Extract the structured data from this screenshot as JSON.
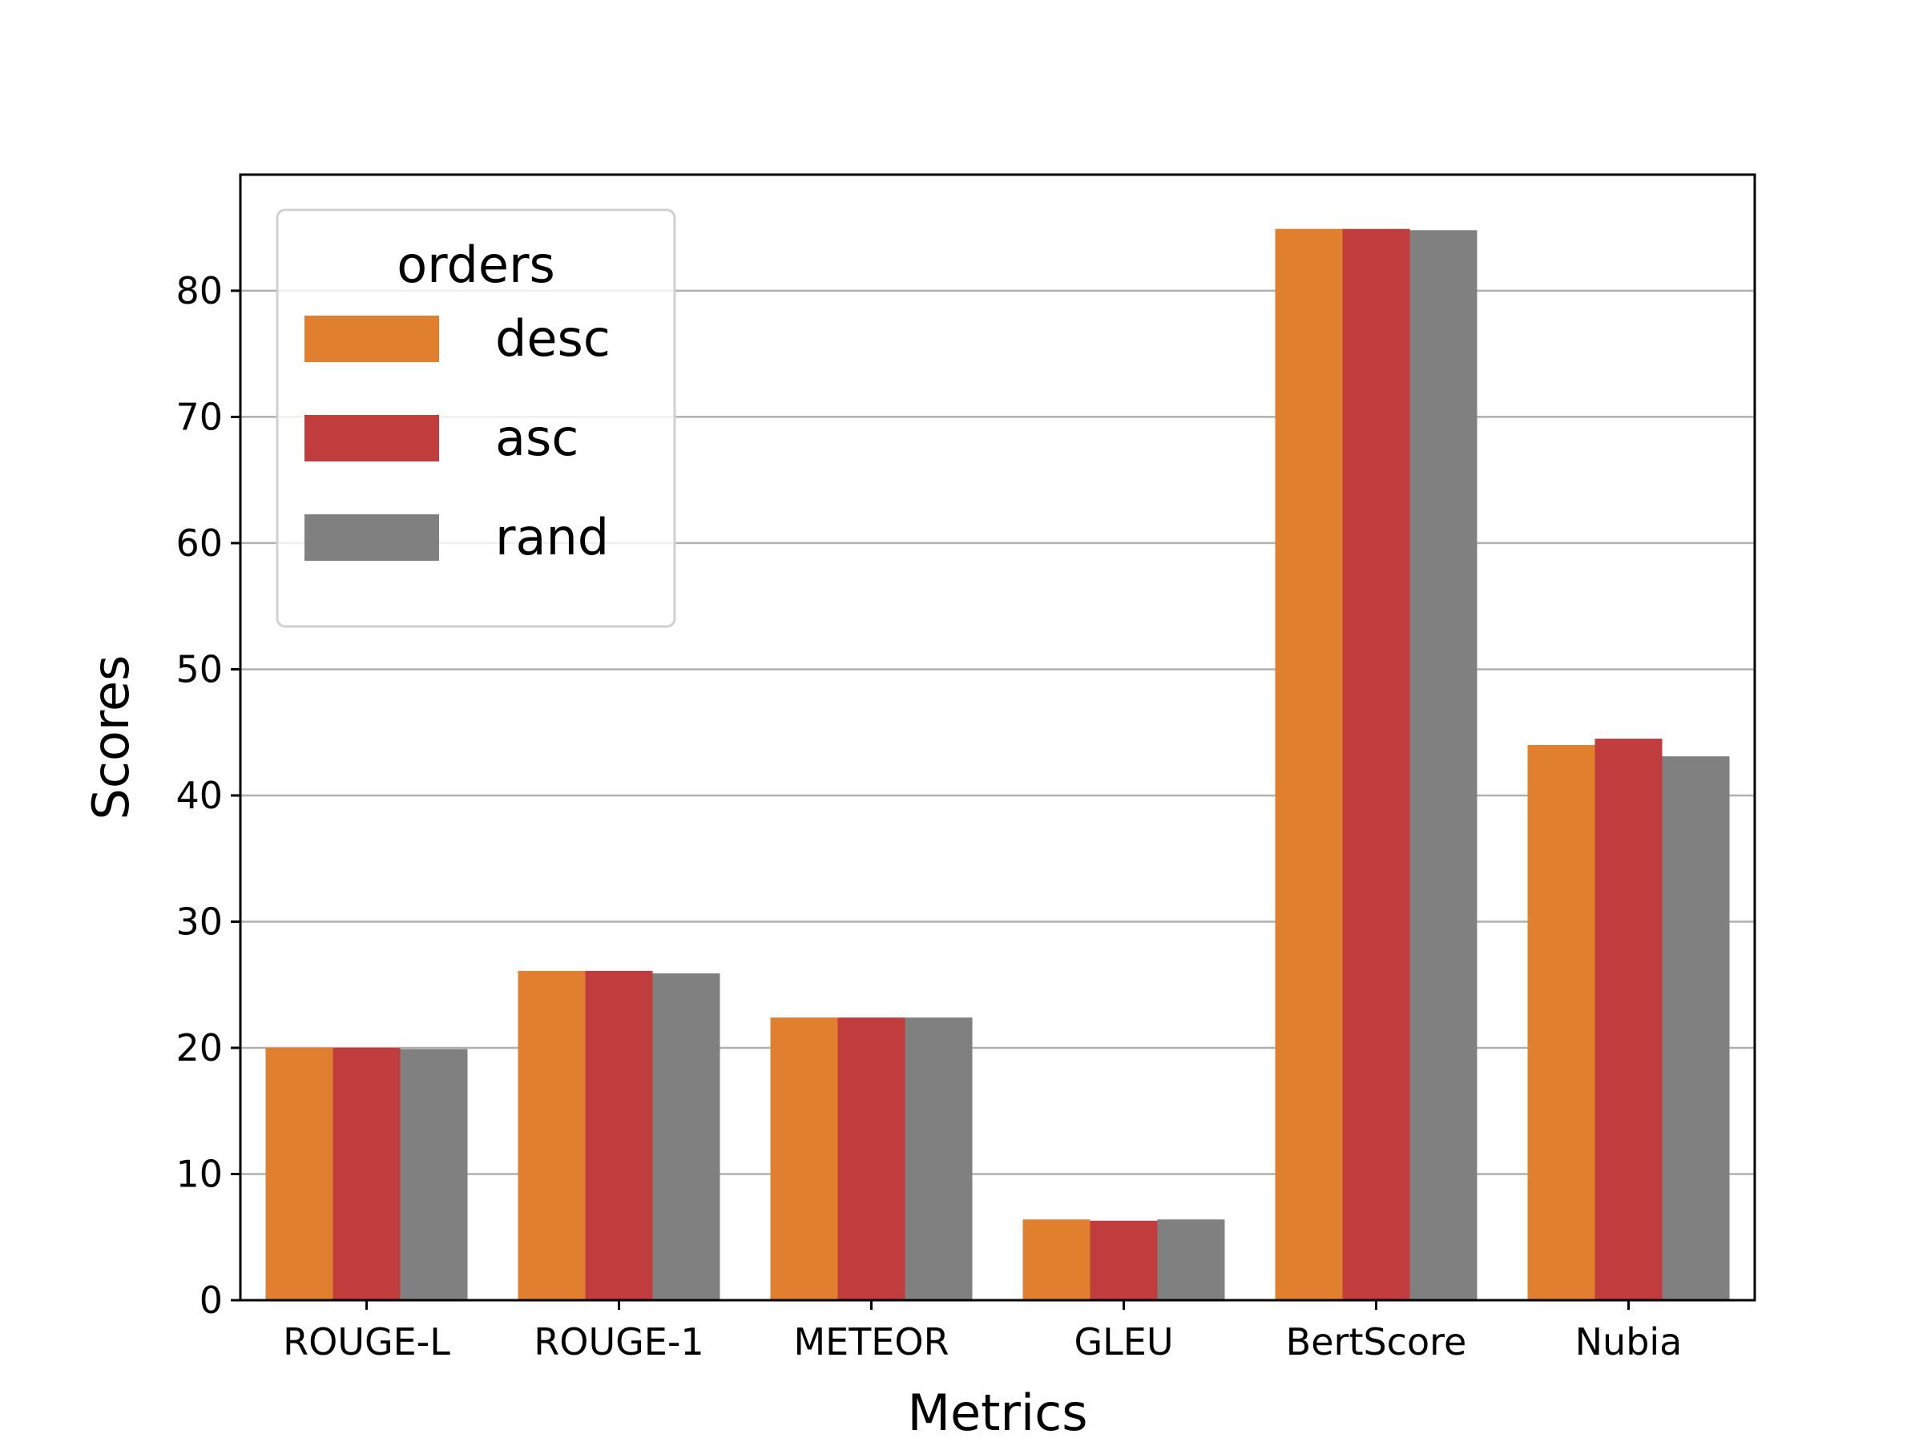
{
  "chart_data": {
    "type": "bar",
    "title": "",
    "xlabel": "Metrics",
    "ylabel": "Scores",
    "categories": [
      "ROUGE-L",
      "ROUGE-1",
      "METEOR",
      "GLEU",
      "BertScore",
      "Nubia"
    ],
    "series": [
      {
        "name": "desc",
        "color": "#e0802e",
        "values": [
          20.0,
          26.1,
          22.4,
          6.4,
          84.9,
          44.0
        ]
      },
      {
        "name": "asc",
        "color": "#c03c3d",
        "values": [
          20.0,
          26.1,
          22.4,
          6.3,
          84.9,
          44.5
        ]
      },
      {
        "name": "rand",
        "color": "#808080",
        "values": [
          19.9,
          25.9,
          22.4,
          6.4,
          84.8,
          43.1
        ]
      }
    ],
    "ylim": [
      0,
      89.2
    ],
    "yticks": [
      0,
      10,
      20,
      30,
      40,
      50,
      60,
      70,
      80
    ],
    "grid": true,
    "legend": {
      "title": "orders",
      "position": "top-left"
    }
  }
}
